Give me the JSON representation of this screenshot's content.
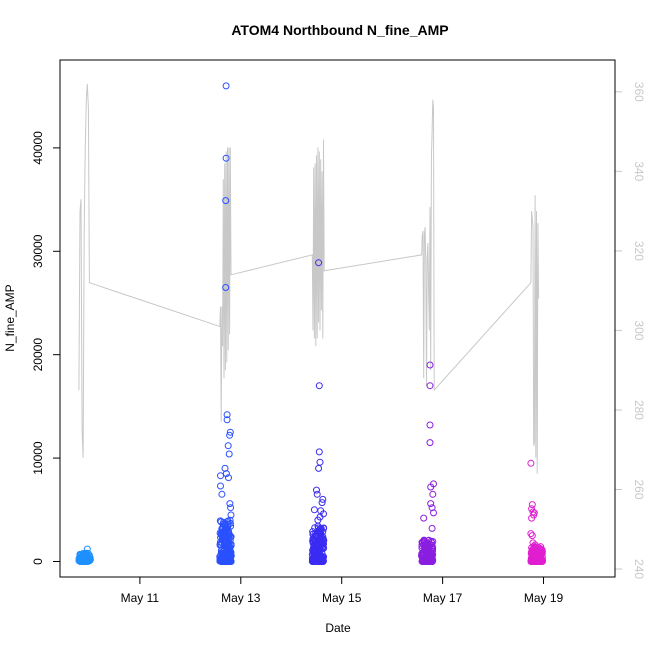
{
  "chart_data": {
    "type": "scatter",
    "title": "ATOM4 Northbound N_fine_AMP",
    "xlabel": "Date",
    "ylabel": "N_fine_AMP",
    "x_range_days": [
      "2016-05-09T10:00",
      "2016-05-20T10:00"
    ],
    "x_ticks": [
      {
        "label": "May 11",
        "date": "2016-05-11"
      },
      {
        "label": "May 13",
        "date": "2016-05-13"
      },
      {
        "label": "May 15",
        "date": "2016-05-15"
      },
      {
        "label": "May 17",
        "date": "2016-05-17"
      },
      {
        "label": "May 19",
        "date": "2016-05-19"
      }
    ],
    "y_left": {
      "range": [
        -1500,
        48500
      ],
      "ticks": [
        {
          "value": 0,
          "label": "0"
        },
        {
          "value": 10000,
          "label": "10000"
        },
        {
          "value": 20000,
          "label": "20000"
        },
        {
          "value": 30000,
          "label": "30000"
        },
        {
          "value": 40000,
          "label": "40000"
        }
      ]
    },
    "y_right": {
      "range": [
        238,
        368
      ],
      "ticks": [
        {
          "value": 240,
          "label": "240"
        },
        {
          "value": 260,
          "label": "260"
        },
        {
          "value": 280,
          "label": "280"
        },
        {
          "value": 300,
          "label": "300"
        },
        {
          "value": 320,
          "label": "320"
        },
        {
          "value": 340,
          "label": "340"
        },
        {
          "value": 360,
          "label": "360"
        }
      ],
      "color": "#c8c8c8"
    },
    "secondary_line": {
      "color": "#c8c8c8",
      "points": [
        [
          "2016-05-09T19:00",
          285
        ],
        [
          "2016-05-09T19:30",
          330
        ],
        [
          "2016-05-09T20:00",
          333
        ],
        [
          "2016-05-09T20:30",
          275
        ],
        [
          "2016-05-09T21:00",
          268
        ],
        [
          "2016-05-09T21:30",
          325
        ],
        [
          "2016-05-09T22:00",
          345
        ],
        [
          "2016-05-09T22:30",
          358
        ],
        [
          "2016-05-09T23:00",
          362
        ],
        [
          "2016-05-09T23:30",
          356
        ],
        [
          "2016-05-10T00:00",
          312
        ],
        [
          "2016-05-12T14:00",
          301
        ],
        [
          "2016-05-12T14:20",
          306
        ],
        [
          "2016-05-12T14:40",
          277
        ],
        [
          "2016-05-12T15:00",
          306
        ],
        [
          "2016-05-12T15:20",
          296
        ],
        [
          "2016-05-12T15:40",
          338
        ],
        [
          "2016-05-12T16:00",
          288
        ],
        [
          "2016-05-12T16:20",
          342
        ],
        [
          "2016-05-12T16:40",
          290
        ],
        [
          "2016-05-12T17:00",
          345
        ],
        [
          "2016-05-12T17:20",
          292
        ],
        [
          "2016-05-12T17:40",
          346
        ],
        [
          "2016-05-12T18:00",
          295
        ],
        [
          "2016-05-12T18:20",
          346
        ],
        [
          "2016-05-12T18:40",
          299
        ],
        [
          "2016-05-12T19:00",
          346
        ],
        [
          "2016-05-12T19:20",
          314
        ],
        [
          "2016-05-14T10:00",
          319
        ],
        [
          "2016-05-14T10:20",
          300
        ],
        [
          "2016-05-14T10:40",
          341
        ],
        [
          "2016-05-14T11:00",
          298
        ],
        [
          "2016-05-14T11:20",
          342
        ],
        [
          "2016-05-14T11:40",
          296
        ],
        [
          "2016-05-14T12:00",
          344
        ],
        [
          "2016-05-14T12:20",
          298
        ],
        [
          "2016-05-14T12:40",
          346
        ],
        [
          "2016-05-14T13:00",
          302
        ],
        [
          "2016-05-14T13:20",
          345
        ],
        [
          "2016-05-14T13:40",
          300
        ],
        [
          "2016-05-14T14:00",
          343
        ],
        [
          "2016-05-14T14:20",
          305
        ],
        [
          "2016-05-14T14:40",
          340
        ],
        [
          "2016-05-14T15:00",
          298
        ],
        [
          "2016-05-14T15:20",
          348
        ],
        [
          "2016-05-14T15:40",
          315
        ],
        [
          "2016-05-16T14:00",
          319
        ],
        [
          "2016-05-16T14:20",
          324
        ],
        [
          "2016-05-16T14:40",
          325
        ],
        [
          "2016-05-16T15:00",
          288
        ],
        [
          "2016-05-16T15:20",
          324
        ],
        [
          "2016-05-16T15:40",
          326
        ],
        [
          "2016-05-16T16:00",
          317
        ],
        [
          "2016-05-16T16:20",
          286
        ],
        [
          "2016-05-16T16:40",
          318
        ],
        [
          "2016-05-16T17:00",
          322
        ],
        [
          "2016-05-16T17:20",
          310
        ],
        [
          "2016-05-16T17:40",
          300
        ],
        [
          "2016-05-16T18:00",
          331
        ],
        [
          "2016-05-16T18:20",
          290
        ],
        [
          "2016-05-16T18:40",
          343
        ],
        [
          "2016-05-16T19:00",
          350
        ],
        [
          "2016-05-16T19:20",
          358
        ],
        [
          "2016-05-16T19:40",
          356
        ],
        [
          "2016-05-16T20:00",
          285
        ],
        [
          "2016-05-18T18:00",
          312
        ],
        [
          "2016-05-18T18:20",
          330
        ],
        [
          "2016-05-18T18:40",
          328
        ],
        [
          "2016-05-18T19:00",
          326
        ],
        [
          "2016-05-18T19:20",
          271
        ],
        [
          "2016-05-18T19:40",
          272
        ],
        [
          "2016-05-18T20:00",
          334
        ],
        [
          "2016-05-18T20:20",
          268
        ],
        [
          "2016-05-18T20:40",
          330
        ],
        [
          "2016-05-18T21:00",
          264
        ],
        [
          "2016-05-18T21:20",
          327
        ],
        [
          "2016-05-18T21:40",
          308
        ]
      ]
    },
    "point_groups": [
      {
        "day_start": "2016-05-09T19:00",
        "color": "#1e90ff",
        "n": 90,
        "ymin": 0,
        "ymax": 800,
        "extra": [
          [
            "2016-05-09T23:00",
            1200
          ]
        ]
      },
      {
        "day_start": "2016-05-12T14:00",
        "color": "#2a50ff",
        "n": 190,
        "ymin": 0,
        "ymax": 4000,
        "extra": [
          [
            "2016-05-12T17:00",
            46000
          ],
          [
            "2016-05-12T17:00",
            39000
          ],
          [
            "2016-05-12T16:50",
            34900
          ],
          [
            "2016-05-12T16:50",
            26500
          ],
          [
            "2016-05-12T17:30",
            14200
          ],
          [
            "2016-05-12T17:30",
            13700
          ],
          [
            "2016-05-12T19:00",
            12500
          ],
          [
            "2016-05-12T18:40",
            12200
          ],
          [
            "2016-05-12T18:00",
            11200
          ],
          [
            "2016-05-12T18:30",
            10400
          ],
          [
            "2016-05-12T16:30",
            9000
          ],
          [
            "2016-05-12T17:10",
            8500
          ],
          [
            "2016-05-12T14:20",
            8300
          ],
          [
            "2016-05-12T18:10",
            8100
          ],
          [
            "2016-05-12T14:20",
            7300
          ],
          [
            "2016-05-12T15:00",
            6500
          ],
          [
            "2016-05-12T19:10",
            5200
          ],
          [
            "2016-05-12T19:20",
            4500
          ],
          [
            "2016-05-12T18:50",
            5600
          ]
        ]
      },
      {
        "day_start": "2016-05-14T10:00",
        "color": "#3a2cf2",
        "n": 190,
        "ymin": 0,
        "ymax": 3500,
        "extra": [
          [
            "2016-05-14T13:00",
            28900
          ],
          [
            "2016-05-14T13:20",
            17000
          ],
          [
            "2016-05-14T13:20",
            10600
          ],
          [
            "2016-05-14T13:40",
            9600
          ],
          [
            "2016-05-14T13:00",
            9000
          ],
          [
            "2016-05-14T12:00",
            6900
          ],
          [
            "2016-05-14T12:20",
            6500
          ],
          [
            "2016-05-14T15:00",
            6000
          ],
          [
            "2016-05-14T14:40",
            5700
          ],
          [
            "2016-05-14T11:00",
            5000
          ],
          [
            "2016-05-14T14:00",
            4900
          ],
          [
            "2016-05-14T15:20",
            4600
          ],
          [
            "2016-05-14T13:40",
            4300
          ],
          [
            "2016-05-14T12:40",
            4000
          ]
        ]
      },
      {
        "day_start": "2016-05-16T14:00",
        "color": "#8a1fe0",
        "n": 150,
        "ymin": 0,
        "ymax": 2200,
        "extra": [
          [
            "2016-05-16T18:00",
            19000
          ],
          [
            "2016-05-16T18:00",
            17000
          ],
          [
            "2016-05-16T18:00",
            13200
          ],
          [
            "2016-05-16T18:00",
            11500
          ],
          [
            "2016-05-16T18:20",
            7200
          ],
          [
            "2016-05-16T19:40",
            7500
          ],
          [
            "2016-05-16T19:20",
            6500
          ],
          [
            "2016-05-16T18:20",
            5600
          ],
          [
            "2016-05-16T19:00",
            5200
          ],
          [
            "2016-05-16T15:00",
            4200
          ],
          [
            "2016-05-16T19:40",
            4700
          ],
          [
            "2016-05-16T19:00",
            3200
          ]
        ]
      },
      {
        "day_start": "2016-05-18T18:00",
        "color": "#e01fd0",
        "n": 170,
        "ymin": 0,
        "ymax": 1500,
        "extra": [
          [
            "2016-05-18T18:00",
            9500
          ],
          [
            "2016-05-18T18:40",
            5500
          ],
          [
            "2016-05-18T18:20",
            5100
          ],
          [
            "2016-05-18T19:00",
            4800
          ],
          [
            "2016-05-18T19:20",
            4500
          ],
          [
            "2016-05-18T18:20",
            4200
          ],
          [
            "2016-05-18T19:40",
            4700
          ],
          [
            "2016-05-18T18:00",
            2700
          ],
          [
            "2016-05-18T18:40",
            2500
          ],
          [
            "2016-05-18T19:00",
            1800
          ],
          [
            "2016-05-18T20:00",
            1600
          ],
          [
            "2016-05-18T20:40",
            1200
          ]
        ]
      }
    ],
    "grid": false,
    "legend": "none"
  }
}
